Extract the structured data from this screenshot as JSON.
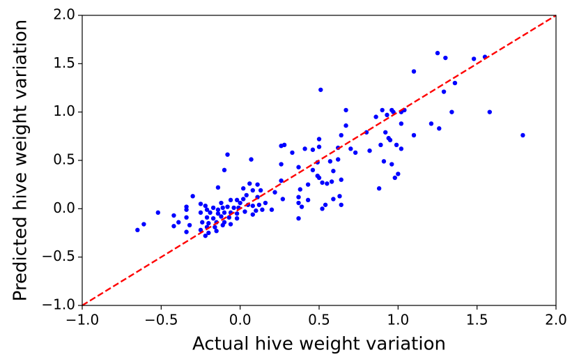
{
  "chart_data": {
    "type": "scatter",
    "xlabel": "Actual hive weight variation",
    "ylabel": "Predicted hive weight variation",
    "color": "#0000ff",
    "xlim": [
      -1.0,
      2.0
    ],
    "ylim": [
      -1.0,
      2.0
    ],
    "xticks": [
      {
        "value": -1.0,
        "label": "−1.0"
      },
      {
        "value": -0.5,
        "label": "−0.5"
      },
      {
        "value": 0.0,
        "label": "0.0"
      },
      0.5,
      {
        "value": 1.0,
        "label": "1.0"
      },
      1.5,
      {
        "value": 2.0,
        "label": "2.0"
      }
    ],
    "yticks": [
      {
        "value": -1.0,
        "label": "−1.0"
      },
      {
        "value": -0.5,
        "label": "−0.5"
      },
      {
        "value": 0.0,
        "label": "0.0"
      },
      0.5,
      {
        "value": 1.0,
        "label": "1.0"
      },
      1.5,
      {
        "value": 2.0,
        "label": "2.0"
      }
    ],
    "x": [
      1.25,
      1.3,
      1.55,
      1.48,
      1.1,
      0.51,
      1.36,
      1.29,
      0.67,
      0.9,
      0.93,
      0.96,
      0.97,
      1.02,
      1.04,
      1.34,
      1.58,
      0.86,
      1.02,
      0.67,
      0.92,
      0.64,
      1.21,
      1.26,
      1.1,
      1.79,
      0.5,
      0.8,
      0.5,
      0.28,
      0.26,
      0.41,
      0.46,
      0.89,
      0.95,
      0.99,
      0.94,
      0.7,
      0.62,
      0.73,
      0.82,
      1.02,
      0.33,
      -0.08,
      0.07,
      0.91,
      0.96,
      0.62,
      0.57,
      0.37,
      0.26,
      0.49,
      0.46,
      -0.1,
      1.0,
      0.49,
      0.59,
      0.58,
      0.98,
      0.5,
      0.52,
      0.64,
      0.55,
      0.43,
      0.26,
      0.38,
      0.06,
      0.11,
      0.88,
      0.13,
      0.08,
      -0.14,
      0.02,
      0.22,
      0.27,
      0.37,
      0.63,
      0.43,
      0.59,
      -0.3,
      0.04,
      0.11,
      0.37,
      0.39,
      0.64,
      0.54,
      0.52,
      -0.25,
      -0.22,
      -0.12,
      -0.06,
      -0.02,
      0.02,
      0.0,
      -0.34,
      -0.34,
      -0.52,
      -0.21,
      -0.17,
      -0.14,
      -0.11,
      -0.08,
      -0.04,
      -0.01,
      0.05,
      0.08,
      0.12,
      0.16,
      0.2,
      0.14,
      0.1,
      -0.25,
      -0.19,
      -0.14,
      -0.1,
      -0.06,
      -0.02,
      0.03,
      0.08,
      -0.42,
      -0.34,
      -0.21,
      -0.17,
      -0.12,
      -0.07,
      -0.02,
      0.37,
      -0.39,
      -0.24,
      -0.2,
      -0.15,
      -0.1,
      -0.06,
      -0.61,
      -0.42,
      -0.32,
      -0.21,
      -0.16,
      -0.11,
      -0.65,
      -0.25,
      -0.34,
      -0.2,
      -0.15,
      -0.22
    ],
    "values": [
      1.61,
      1.56,
      1.57,
      1.55,
      1.42,
      1.23,
      1.3,
      1.21,
      1.02,
      1.02,
      0.97,
      1.02,
      1.0,
      1.0,
      1.02,
      1.0,
      1.0,
      0.95,
      0.88,
      0.86,
      0.79,
      0.76,
      0.88,
      0.83,
      0.76,
      0.76,
      0.72,
      0.79,
      0.64,
      0.66,
      0.65,
      0.62,
      0.61,
      0.66,
      0.71,
      0.66,
      0.73,
      0.62,
      0.63,
      0.58,
      0.6,
      0.62,
      0.58,
      0.56,
      0.51,
      0.49,
      0.46,
      0.51,
      0.49,
      0.43,
      0.46,
      0.48,
      0.4,
      0.4,
      0.36,
      0.34,
      0.39,
      0.28,
      0.32,
      0.32,
      0.27,
      0.3,
      0.26,
      0.25,
      0.29,
      0.2,
      0.26,
      0.25,
      0.21,
      0.19,
      0.19,
      0.22,
      0.21,
      0.17,
      0.1,
      0.12,
      0.13,
      0.09,
      0.1,
      0.13,
      0.14,
      0.12,
      0.06,
      0.02,
      0.04,
      0.04,
      0.0,
      0.05,
      0.03,
      0.06,
      0.09,
      0.09,
      0.1,
      0.06,
      0.02,
      -0.01,
      -0.04,
      -0.01,
      0.01,
      -0.01,
      0.01,
      0.02,
      0.01,
      0.01,
      0.04,
      0.03,
      0.04,
      0.06,
      -0.01,
      -0.01,
      -0.02,
      -0.04,
      -0.04,
      -0.05,
      -0.04,
      -0.04,
      -0.05,
      -0.03,
      -0.06,
      -0.07,
      -0.09,
      -0.09,
      -0.1,
      -0.08,
      -0.09,
      -0.1,
      -0.1,
      -0.14,
      -0.14,
      -0.15,
      -0.14,
      -0.14,
      -0.16,
      -0.16,
      -0.18,
      -0.17,
      -0.19,
      -0.19,
      -0.17,
      -0.22,
      -0.22,
      -0.24,
      -0.25,
      -0.23,
      -0.28
    ]
  }
}
